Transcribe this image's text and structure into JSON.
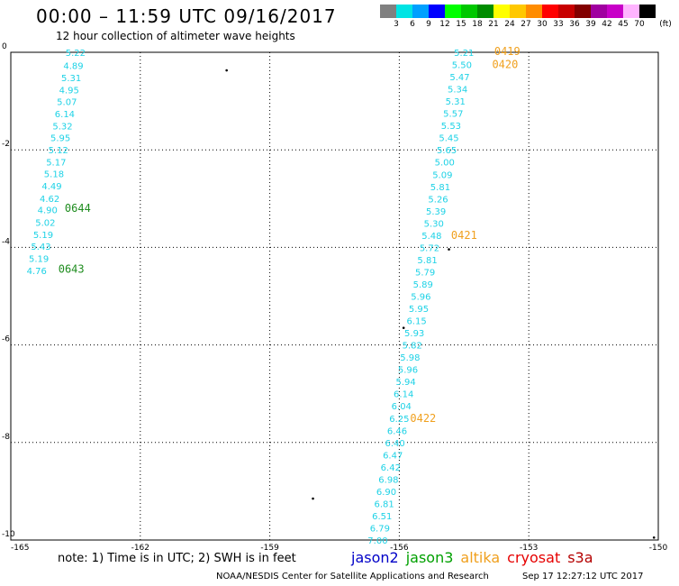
{
  "header": {
    "title": "00:00 – 11:59 UTC 09/16/2017",
    "subtitle": "12 hour collection of altimeter wave heights"
  },
  "colorbar": {
    "colors": [
      "#808080",
      "#00e4e4",
      "#00a0ff",
      "#0000ff",
      "#00ff00",
      "#00c800",
      "#008c00",
      "#ffff00",
      "#ffc800",
      "#ff8c00",
      "#ff0000",
      "#c80000",
      "#820000",
      "#a000a0",
      "#c800c8",
      "#ffb4ff",
      "#000000"
    ],
    "labels": [
      "3",
      "6",
      "9",
      "12",
      "15",
      "18",
      "21",
      "24",
      "27",
      "30",
      "33",
      "36",
      "39",
      "42",
      "45",
      "70"
    ],
    "unit": "(ft)"
  },
  "axes": {
    "lat_labels": [
      "0",
      "-2",
      "-4",
      "-6",
      "-8",
      "-10"
    ],
    "lat_values": [
      0,
      -2,
      -4,
      -6,
      -8,
      -10
    ],
    "lon_labels": [
      "-165",
      "-162",
      "-159",
      "-156",
      "-153",
      "-150"
    ],
    "lon_values": [
      -165,
      -162,
      -159,
      -156,
      -153,
      -150
    ],
    "lon_range": [
      -165,
      -150
    ],
    "lat_range": [
      -10,
      0
    ]
  },
  "tracks": [
    {
      "color": "#1ed2e6",
      "points": [
        {
          "lon": -163.5,
          "lat": 0.0,
          "v": "5.22"
        },
        {
          "lon": -163.55,
          "lat": -0.27,
          "v": "4.89"
        },
        {
          "lon": -163.6,
          "lat": -0.52,
          "v": "5.31"
        },
        {
          "lon": -163.65,
          "lat": -0.77,
          "v": "4.95"
        },
        {
          "lon": -163.7,
          "lat": -1.01,
          "v": "5.07"
        },
        {
          "lon": -163.75,
          "lat": -1.26,
          "v": "6.14"
        },
        {
          "lon": -163.8,
          "lat": -1.51,
          "v": "5.32"
        },
        {
          "lon": -163.85,
          "lat": -1.75,
          "v": "5.95"
        },
        {
          "lon": -163.9,
          "lat": -2.0,
          "v": "5.12"
        },
        {
          "lon": -163.95,
          "lat": -2.25,
          "v": "5.17"
        },
        {
          "lon": -164.0,
          "lat": -2.49,
          "v": "5.18"
        },
        {
          "lon": -164.05,
          "lat": -2.74,
          "v": "4.49"
        },
        {
          "lon": -164.1,
          "lat": -2.99,
          "v": "4.62"
        },
        {
          "lon": -164.15,
          "lat": -3.23,
          "v": "4.90"
        },
        {
          "lon": -164.2,
          "lat": -3.48,
          "v": "5.02"
        },
        {
          "lon": -164.25,
          "lat": -3.73,
          "v": "5.19"
        },
        {
          "lon": -164.3,
          "lat": -3.97,
          "v": "5.43"
        },
        {
          "lon": -164.35,
          "lat": -4.22,
          "v": "5.19"
        },
        {
          "lon": -164.4,
          "lat": -4.47,
          "v": "4.76"
        }
      ]
    },
    {
      "color": "#1ed2e6",
      "points": [
        {
          "lon": -154.5,
          "lat": 0.0,
          "v": "5.21"
        },
        {
          "lon": -154.55,
          "lat": -0.25,
          "v": "5.50"
        },
        {
          "lon": -154.6,
          "lat": -0.5,
          "v": "5.47"
        },
        {
          "lon": -154.65,
          "lat": -0.75,
          "v": "5.34"
        },
        {
          "lon": -154.7,
          "lat": -1.0,
          "v": "5.31"
        },
        {
          "lon": -154.75,
          "lat": -1.25,
          "v": "5.57"
        },
        {
          "lon": -154.8,
          "lat": -1.5,
          "v": "5.53"
        },
        {
          "lon": -154.85,
          "lat": -1.75,
          "v": "5.45"
        },
        {
          "lon": -154.9,
          "lat": -2.0,
          "v": "5.65"
        },
        {
          "lon": -154.95,
          "lat": -2.25,
          "v": "5.00"
        },
        {
          "lon": -155.0,
          "lat": -2.5,
          "v": "5.09"
        },
        {
          "lon": -155.05,
          "lat": -2.75,
          "v": "5.81"
        },
        {
          "lon": -155.1,
          "lat": -3.0,
          "v": "5.26"
        },
        {
          "lon": -155.15,
          "lat": -3.25,
          "v": "5.39"
        },
        {
          "lon": -155.2,
          "lat": -3.5,
          "v": "5.30"
        },
        {
          "lon": -155.25,
          "lat": -3.75,
          "v": "5.48"
        },
        {
          "lon": -155.3,
          "lat": -4.0,
          "v": "5.72"
        },
        {
          "lon": -155.35,
          "lat": -4.25,
          "v": "5.81"
        },
        {
          "lon": -155.4,
          "lat": -4.5,
          "v": "5.79"
        },
        {
          "lon": -155.45,
          "lat": -4.75,
          "v": "5.89"
        },
        {
          "lon": -155.5,
          "lat": -5.0,
          "v": "5.96"
        },
        {
          "lon": -155.55,
          "lat": -5.25,
          "v": "5.95"
        },
        {
          "lon": -155.6,
          "lat": -5.5,
          "v": "6.15"
        },
        {
          "lon": -155.65,
          "lat": -5.75,
          "v": "5.93"
        },
        {
          "lon": -155.7,
          "lat": -6.0,
          "v": "5.82"
        },
        {
          "lon": -155.75,
          "lat": -6.25,
          "v": "5.98"
        },
        {
          "lon": -155.8,
          "lat": -6.5,
          "v": "5.96"
        },
        {
          "lon": -155.85,
          "lat": -6.75,
          "v": "5.94"
        },
        {
          "lon": -155.9,
          "lat": -7.0,
          "v": "6.14"
        },
        {
          "lon": -155.95,
          "lat": -7.25,
          "v": "6.04"
        },
        {
          "lon": -156.0,
          "lat": -7.5,
          "v": "6.25"
        },
        {
          "lon": -156.05,
          "lat": -7.75,
          "v": "6.46"
        },
        {
          "lon": -156.1,
          "lat": -8.0,
          "v": "6.40"
        },
        {
          "lon": -156.15,
          "lat": -8.25,
          "v": "6.47"
        },
        {
          "lon": -156.2,
          "lat": -8.5,
          "v": "6.42"
        },
        {
          "lon": -156.25,
          "lat": -8.75,
          "v": "6.98"
        },
        {
          "lon": -156.3,
          "lat": -9.0,
          "v": "6.90"
        },
        {
          "lon": -156.35,
          "lat": -9.25,
          "v": "6.81"
        },
        {
          "lon": -156.4,
          "lat": -9.5,
          "v": "6.51"
        },
        {
          "lon": -156.45,
          "lat": -9.75,
          "v": "6.79"
        },
        {
          "lon": -156.5,
          "lat": -10.0,
          "v": "7.00"
        }
      ]
    }
  ],
  "pass_labels": [
    {
      "text": "0419",
      "lon": -153.8,
      "lat": 0.02,
      "color": "#f0a01e"
    },
    {
      "text": "0420",
      "lon": -153.85,
      "lat": -0.25,
      "color": "#f0a01e"
    },
    {
      "text": "0421",
      "lon": -154.8,
      "lat": -3.75,
      "color": "#f0a01e"
    },
    {
      "text": "0422",
      "lon": -155.75,
      "lat": -7.5,
      "color": "#f0a01e"
    },
    {
      "text": "0644",
      "lon": -163.75,
      "lat": -3.2,
      "color": "#1e8c1e"
    },
    {
      "text": "0643",
      "lon": -163.9,
      "lat": -4.45,
      "color": "#1e8c1e"
    }
  ],
  "islands": [
    {
      "lon": -160.0,
      "lat": -0.37
    },
    {
      "lon": -154.85,
      "lat": -4.04
    },
    {
      "lon": -155.9,
      "lat": -5.65
    },
    {
      "lon": -158.0,
      "lat": -9.15
    },
    {
      "lon": -150.1,
      "lat": -9.95
    }
  ],
  "footer": {
    "note": "note:  1) Time is in UTC;  2) SWH is in feet",
    "legend": [
      {
        "name": "jason2",
        "color": "#0000c8"
      },
      {
        "name": "jason3",
        "color": "#00a000"
      },
      {
        "name": "altika",
        "color": "#f0a01e"
      },
      {
        "name": "cryosat",
        "color": "#e60000"
      },
      {
        "name": "s3a",
        "color": "#b40000"
      }
    ],
    "credit": "NOAA/NESDIS Center for Satellite Applications and Research",
    "timestamp": "Sep 17 12:27:12 UTC 2017"
  }
}
